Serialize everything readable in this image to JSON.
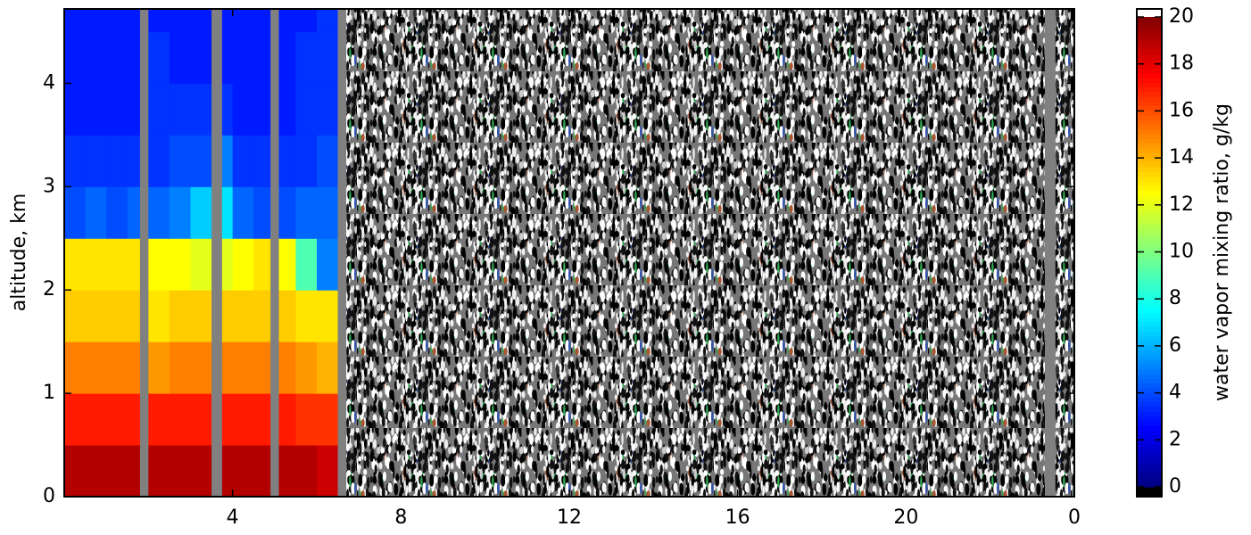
{
  "chart_data": {
    "type": "heatmap",
    "y_label": "altitude, km",
    "colorbar_label": "water vapor mixing ratio, g/kg",
    "colormap": "jet",
    "xlim": [
      0,
      24
    ],
    "xticks": [
      4,
      8,
      12,
      16,
      20,
      {
        "value": 24,
        "label": "0"
      }
    ],
    "ylim": [
      0,
      4.72
    ],
    "yticks": [
      0,
      1,
      2,
      3,
      4
    ],
    "clim": [
      0,
      20
    ],
    "cticks": [
      0,
      2,
      4,
      6,
      8,
      10,
      12,
      14,
      16,
      18,
      20
    ],
    "x_edges": [
      0,
      0.5,
      1,
      1.5,
      2,
      2.5,
      3,
      3.5,
      4,
      4.5,
      5,
      5.5,
      6,
      6.5
    ],
    "y_edges": [
      0,
      0.5,
      1,
      1.5,
      2,
      2.5,
      3,
      3.5,
      4,
      4.5,
      4.72
    ],
    "z": [
      [
        19,
        19,
        19,
        19,
        19,
        19,
        19,
        19,
        19,
        19,
        19,
        19,
        18.5
      ],
      [
        17,
        17,
        17,
        17,
        17,
        17,
        17,
        17,
        17,
        17,
        17,
        16.5,
        16.5
      ],
      [
        15,
        15,
        15,
        15,
        14.5,
        15,
        15,
        15,
        15,
        15,
        15,
        14.5,
        14
      ],
      [
        13.5,
        13.5,
        13.5,
        13.5,
        13,
        13.5,
        13.5,
        13.5,
        13.5,
        13.5,
        13.5,
        13,
        13
      ],
      [
        13,
        13,
        13,
        13,
        12.5,
        12.5,
        12,
        12,
        12.5,
        13,
        12.5,
        9,
        5
      ],
      [
        4,
        4.5,
        4,
        4.5,
        4.5,
        5,
        6.5,
        7,
        4.5,
        4,
        4,
        4.5,
        4.5
      ],
      [
        3.5,
        3.5,
        3.5,
        3.5,
        3.5,
        4,
        4,
        5,
        3.5,
        3.5,
        3.5,
        3.5,
        4
      ],
      [
        3,
        3,
        3,
        3,
        3.5,
        3.5,
        3.5,
        3.5,
        3,
        3,
        3,
        3.5,
        3.5
      ],
      [
        3,
        3,
        3,
        3,
        3.5,
        3,
        3,
        3,
        3,
        3,
        3,
        3.5,
        3.5
      ],
      [
        3,
        3,
        3,
        3,
        3,
        3,
        3,
        3,
        3,
        3,
        3,
        3,
        3.5
      ]
    ],
    "gaps": [
      [
        1.8,
        2.0
      ],
      [
        3.5,
        3.75
      ],
      [
        4.9,
        5.1
      ],
      [
        6.5,
        6.7
      ],
      [
        23.3,
        23.55
      ]
    ],
    "gap_color": "#808080"
  }
}
